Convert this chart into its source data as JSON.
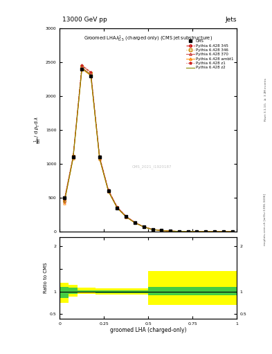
{
  "title_top": "13000 GeV pp",
  "title_right": "Jets",
  "plot_title": "Groomed LHA$\\lambda^{1}_{0.5}$ (charged only) (CMS jet substructure)",
  "xlabel": "groomed LHA (charged-only)",
  "ylabel_main_lines": [
    "mathrm d$^2$N",
    "mathrm d $p_T$ mathrm d $\\lambda$",
    "mathrm dN / mathrm d $p_T$ mathrm d $\\lambda$",
    "1"
  ],
  "ylabel_ratio": "Ratio to CMS",
  "right_label_top": "Rivet 3.1.10, $\\geq$ 3.2M events",
  "right_label_bot": "mcplots.cern.ch [arXiv:1306.3436]",
  "watermark": "CMS_2021_I1920187",
  "x_data": [
    0.025,
    0.075,
    0.125,
    0.175,
    0.225,
    0.275,
    0.325,
    0.375,
    0.425,
    0.475,
    0.525,
    0.575,
    0.625,
    0.675,
    0.725,
    0.775,
    0.825,
    0.875,
    0.925,
    0.975
  ],
  "cms_data": [
    500,
    1100,
    2400,
    2300,
    1100,
    600,
    350,
    220,
    130,
    70,
    30,
    15,
    8,
    4,
    2,
    1,
    0.5,
    0.2,
    0.1,
    0.05
  ],
  "py345_data": [
    450,
    1100,
    2450,
    2350,
    1100,
    610,
    360,
    225,
    135,
    72,
    32,
    16,
    8,
    4,
    2.1,
    1.0,
    0.5,
    0.2,
    0.1,
    0.05
  ],
  "py346_data": [
    460,
    1110,
    2440,
    2340,
    1095,
    605,
    355,
    222,
    133,
    71,
    31,
    15.5,
    7.8,
    3.9,
    2.0,
    0.95,
    0.48,
    0.19,
    0.09,
    0.045
  ],
  "py370_data": [
    440,
    1090,
    2420,
    2320,
    1080,
    595,
    348,
    218,
    130,
    69,
    30,
    15,
    7.5,
    3.8,
    1.9,
    0.92,
    0.46,
    0.18,
    0.09,
    0.044
  ],
  "pyambt1_data": [
    420,
    1080,
    2400,
    2300,
    1070,
    590,
    345,
    215,
    128,
    68,
    29,
    14.5,
    7.2,
    3.6,
    1.8,
    0.9,
    0.45,
    0.18,
    0.088,
    0.043
  ],
  "pyz1_data": [
    480,
    1120,
    2460,
    2360,
    1110,
    615,
    363,
    228,
    137,
    73,
    33,
    16.5,
    8.2,
    4.1,
    2.15,
    1.02,
    0.52,
    0.21,
    0.1,
    0.05
  ],
  "pyz2_data": [
    430,
    1085,
    2410,
    2310,
    1075,
    592,
    347,
    217,
    129,
    68.5,
    29.5,
    14.8,
    7.3,
    3.7,
    1.85,
    0.91,
    0.455,
    0.18,
    0.089,
    0.044
  ],
  "ratio_x_edges": [
    0.0,
    0.05,
    0.1,
    0.15,
    0.2,
    0.25,
    0.3,
    0.35,
    0.4,
    0.45,
    0.5,
    0.55,
    0.6,
    0.65,
    0.7,
    0.75,
    0.8,
    0.85,
    0.9,
    0.95,
    1.0
  ],
  "ratio_green_low": [
    0.85,
    0.95,
    0.98,
    0.98,
    0.97,
    0.97,
    0.97,
    0.97,
    0.97,
    0.97,
    0.92,
    0.92,
    0.92,
    0.92,
    0.92,
    0.92,
    0.92,
    0.92,
    0.92,
    0.92
  ],
  "ratio_green_high": [
    1.1,
    1.08,
    1.03,
    1.03,
    1.02,
    1.02,
    1.02,
    1.02,
    1.02,
    1.02,
    1.1,
    1.1,
    1.1,
    1.1,
    1.1,
    1.1,
    1.1,
    1.1,
    1.1,
    1.1
  ],
  "ratio_yellow_low": [
    0.75,
    0.88,
    0.95,
    0.95,
    0.93,
    0.93,
    0.93,
    0.93,
    0.93,
    0.93,
    0.7,
    0.7,
    0.7,
    0.7,
    0.7,
    0.7,
    0.7,
    0.7,
    0.7,
    0.7
  ],
  "ratio_yellow_high": [
    1.2,
    1.15,
    1.08,
    1.08,
    1.07,
    1.07,
    1.07,
    1.07,
    1.07,
    1.07,
    1.45,
    1.45,
    1.45,
    1.45,
    1.45,
    1.45,
    1.45,
    1.45,
    1.45,
    1.45
  ],
  "ylim_main": [
    0,
    3000
  ],
  "ylim_ratio": [
    0.4,
    2.2
  ],
  "xlim": [
    0,
    1
  ],
  "colors": {
    "cms": "#000000",
    "py345": "#cc0000",
    "py346": "#cc8800",
    "py370": "#cc4444",
    "pyambt1": "#ff8800",
    "pyz1": "#cc2222",
    "pyz2": "#888800",
    "green": "#44cc44",
    "yellow": "#ffff00"
  }
}
